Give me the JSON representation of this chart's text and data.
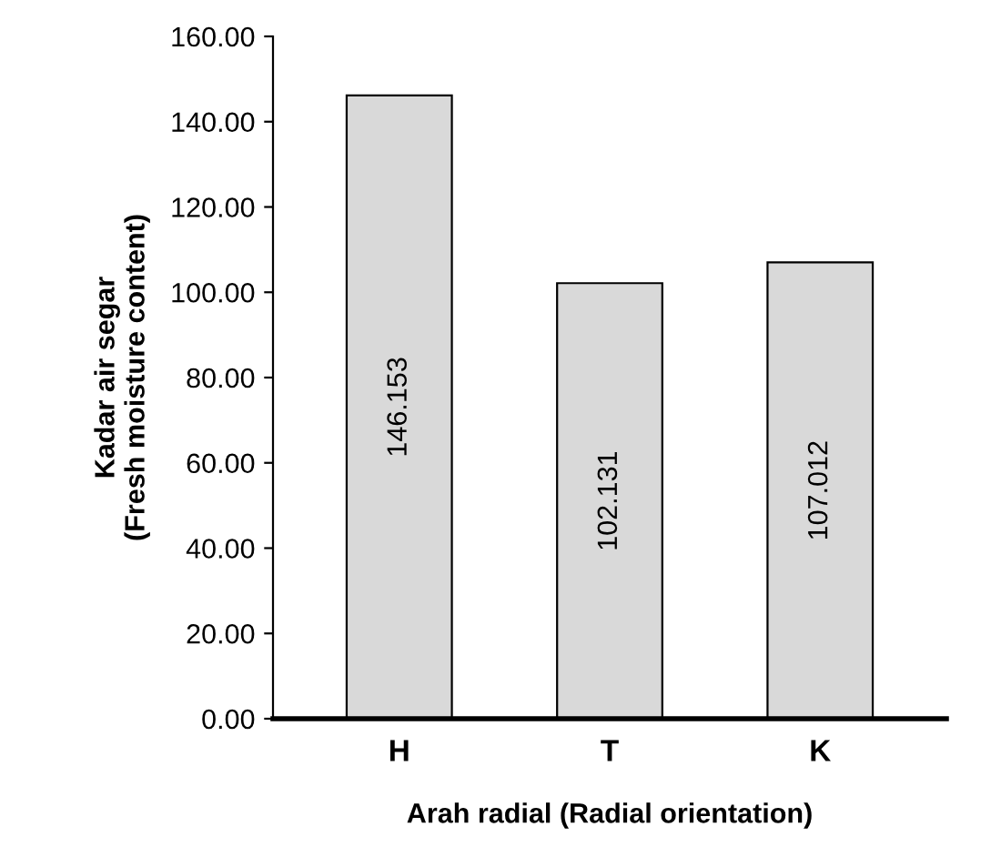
{
  "chart_data": {
    "type": "bar",
    "xlabel": "Arah radial (Radial orientation)",
    "ylabel": "Kadar air segar\n(Fresh moisture content)",
    "categories": [
      "H",
      "T",
      "K"
    ],
    "values": [
      146.153,
      102.131,
      107.012
    ],
    "value_labels": [
      "146.153",
      "102.131",
      "107.012"
    ],
    "color": "#d9d9d9",
    "ylim": [
      0,
      160
    ],
    "yticks": [
      {
        "value": 0,
        "label": "0.00"
      },
      {
        "value": 20,
        "label": "20.00"
      },
      {
        "value": 40,
        "label": "40.00"
      },
      {
        "value": 60,
        "label": "60.00"
      },
      {
        "value": 80,
        "label": "80.00"
      },
      {
        "value": 100,
        "label": "100.00"
      },
      {
        "value": 120,
        "label": "120.00"
      },
      {
        "value": 140,
        "label": "140.00"
      },
      {
        "value": 160,
        "label": "160.00"
      }
    ],
    "grid": false,
    "legend": false
  }
}
